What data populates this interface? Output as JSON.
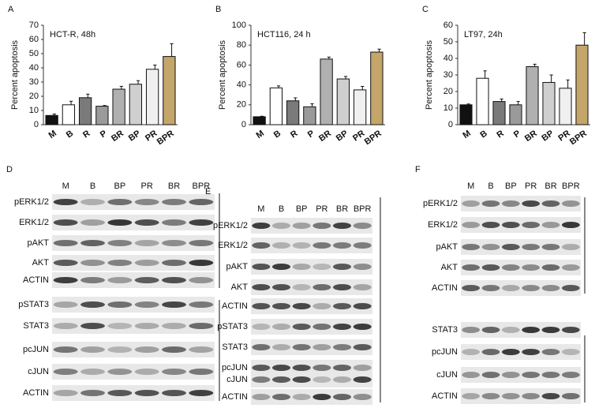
{
  "chart_data": [
    {
      "type": "bar",
      "panel": "A",
      "title": "HCT-R, 48h",
      "y_label": "Percent apoptosis",
      "categories": [
        "M",
        "B",
        "R",
        "P",
        "BR",
        "BP",
        "PR",
        "BPR"
      ],
      "values": [
        6.5,
        14,
        19,
        13,
        25,
        28.5,
        39,
        48
      ],
      "errors": [
        1,
        2.5,
        2.5,
        0.5,
        2,
        2.5,
        3,
        9
      ],
      "colors": [
        "#111111",
        "#ffffff",
        "#7a7a7a",
        "#9a9a9a",
        "#b0b0b0",
        "#cfcfcf",
        "#f0f0f0",
        "#c4a56a"
      ],
      "ylim": [
        0,
        70
      ],
      "yticks": [
        0,
        10,
        20,
        30,
        40,
        50,
        60,
        70
      ]
    },
    {
      "type": "bar",
      "panel": "B",
      "title": "HCT116, 24 h",
      "y_label": "Percent apoptosis",
      "categories": [
        "M",
        "B",
        "R",
        "P",
        "BR",
        "BP",
        "PR",
        "BPR"
      ],
      "values": [
        8,
        37,
        24,
        18,
        66,
        46,
        35,
        73
      ],
      "errors": [
        0.5,
        2,
        3,
        3,
        2,
        2.5,
        3.5,
        3
      ],
      "colors": [
        "#111111",
        "#ffffff",
        "#7a7a7a",
        "#9a9a9a",
        "#b0b0b0",
        "#cfcfcf",
        "#f0f0f0",
        "#c4a56a"
      ],
      "ylim": [
        0,
        100
      ],
      "yticks": [
        0,
        20,
        40,
        60,
        80,
        100
      ]
    },
    {
      "type": "bar",
      "panel": "C",
      "title": "LT97, 24h",
      "y_label": "Percent apoptosis",
      "categories": [
        "M",
        "B",
        "R",
        "P",
        "BR",
        "BP",
        "PR",
        "BPR"
      ],
      "values": [
        12,
        28,
        14,
        12,
        35,
        25.5,
        22,
        48
      ],
      "errors": [
        0.5,
        4.5,
        1.5,
        2,
        1.5,
        4.5,
        5,
        7.5
      ],
      "colors": [
        "#111111",
        "#ffffff",
        "#7a7a7a",
        "#9a9a9a",
        "#b0b0b0",
        "#cfcfcf",
        "#f0f0f0",
        "#c4a56a"
      ],
      "ylim": [
        0,
        60
      ],
      "yticks": [
        0,
        10,
        20,
        30,
        40,
        50,
        60
      ]
    }
  ],
  "blots": [
    {
      "panel": "D",
      "lanes": [
        "M",
        "B",
        "BP",
        "PR",
        "BR",
        "BPR"
      ],
      "rows": [
        "pERK1/2",
        "ERK1/2",
        "pAKT",
        "AKT",
        "ACTIN",
        "pSTAT3",
        "STAT3",
        "pcJUN",
        "cJUN",
        "ACTIN"
      ]
    },
    {
      "panel": "E",
      "lanes": [
        "M",
        "B",
        "BP",
        "PR",
        "BR",
        "BPR"
      ],
      "rows": [
        "pERK1/2",
        "ERK1/2",
        "pAKT",
        "AKT",
        "ACTIN",
        "pSTAT3",
        "STAT3",
        "pcJUN",
        "cJUN",
        "ACTIN"
      ]
    },
    {
      "panel": "F",
      "lanes": [
        "M",
        "B",
        "BP",
        "PR",
        "BR",
        "BPR"
      ],
      "rows": [
        "pERK1/2",
        "ERK1/2",
        "pAKT",
        "AKT",
        "ACTIN",
        "STAT3",
        "pcJUN",
        "cJUN",
        "ACTIN"
      ]
    }
  ]
}
